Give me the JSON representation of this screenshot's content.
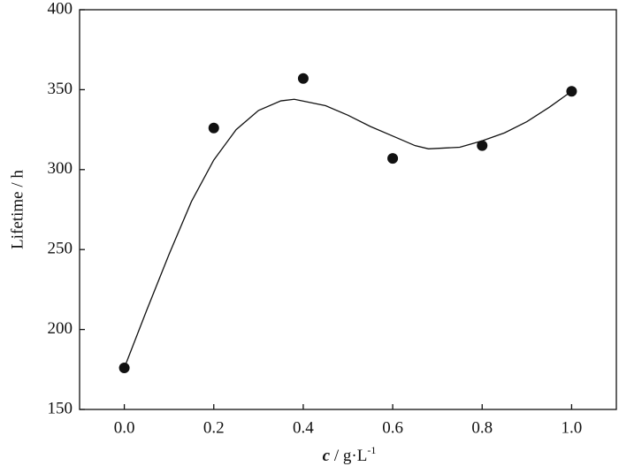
{
  "chart_data": {
    "type": "scatter",
    "xlabel": {
      "symbol": "c",
      "unit": " / g·L",
      "sup": "-1"
    },
    "ylabel": "Lifetime / h",
    "xlim": [
      -0.1,
      1.1
    ],
    "xticks": [
      {
        "value": 0,
        "label": "0.0"
      },
      0.2,
      0.4,
      0.6,
      0.8,
      {
        "value": 1,
        "label": "1.0"
      }
    ],
    "ylim": [
      150,
      400
    ],
    "yticks": [
      150,
      200,
      250,
      300,
      350,
      400
    ],
    "series": [
      {
        "type": "scatter",
        "color": "#111111",
        "x": [
          0,
          0.2,
          0.4,
          0.6,
          0.8,
          1.0
        ],
        "values": [
          176,
          326,
          357,
          307,
          315,
          349
        ]
      },
      {
        "type": "line",
        "color": "#111111",
        "x": [
          0,
          0.05,
          0.1,
          0.15,
          0.2,
          0.25,
          0.3,
          0.35,
          0.38,
          0.45,
          0.5,
          0.55,
          0.6,
          0.65,
          0.68,
          0.75,
          0.8,
          0.85,
          0.9,
          0.95,
          1.0
        ],
        "values": [
          176,
          212,
          247,
          280,
          306,
          325,
          337,
          343,
          344,
          340,
          334,
          327,
          321,
          315,
          313,
          314,
          318,
          323,
          330,
          339,
          349
        ]
      }
    ]
  }
}
